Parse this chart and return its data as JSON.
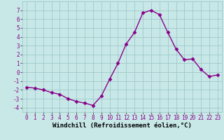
{
  "x": [
    0,
    1,
    2,
    3,
    4,
    5,
    6,
    7,
    8,
    9,
    10,
    11,
    12,
    13,
    14,
    15,
    16,
    17,
    18,
    19,
    20,
    21,
    22,
    23
  ],
  "y": [
    -1.7,
    -1.8,
    -2.0,
    -2.3,
    -2.5,
    -3.0,
    -3.3,
    -3.5,
    -3.75,
    -2.7,
    -0.8,
    1.0,
    3.2,
    4.5,
    6.7,
    7.0,
    6.5,
    4.5,
    2.6,
    1.4,
    1.5,
    0.3,
    -0.5,
    -0.3
  ],
  "line_color": "#880088",
  "marker": "D",
  "marker_size": 2.5,
  "bg_color": "#c8e8e8",
  "grid_color": "#a0c8c8",
  "xlabel": "Windchill (Refroidissement éolien,°C)",
  "xlabel_fontsize": 6.5,
  "ylim": [
    -4.5,
    8.0
  ],
  "xlim": [
    -0.5,
    23.5
  ],
  "yticks": [
    -4,
    -3,
    -2,
    -1,
    0,
    1,
    2,
    3,
    4,
    5,
    6,
    7
  ],
  "xticks": [
    0,
    1,
    2,
    3,
    4,
    5,
    6,
    7,
    8,
    9,
    10,
    11,
    12,
    13,
    14,
    15,
    16,
    17,
    18,
    19,
    20,
    21,
    22,
    23
  ],
  "tick_fontsize": 5.5,
  "line_width": 1.0
}
